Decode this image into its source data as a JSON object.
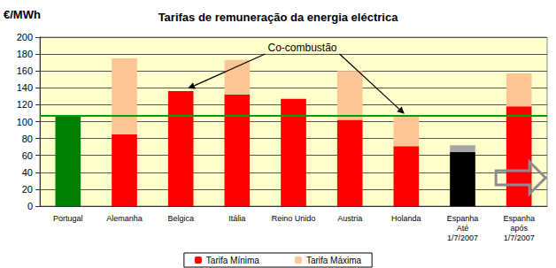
{
  "chart_data": {
    "type": "bar",
    "title": "Tarifas de remuneração da energia eléctrica",
    "y_label": "€/MWh",
    "categories": [
      "Portugal",
      "Alemanha",
      "Belgica",
      "Itália",
      "Reino Unido",
      "Austria",
      "Holanda",
      "Espanha\nAté\n1/7/2007",
      "Espanha\napós\n1/7/2007"
    ],
    "series": [
      {
        "name": "Tarifa Mínima",
        "color": "#ff0000",
        "colors": [
          "#008000",
          "#ff0000",
          "#ff0000",
          "#ff0000",
          "#ff0000",
          "#ff0000",
          "#ff0000",
          "#000000",
          "#ff0000"
        ],
        "values": [
          107,
          85,
          136,
          132,
          127,
          102,
          71,
          64,
          118
        ]
      },
      {
        "name": "Tarifa Máxima",
        "color": "#fcc596",
        "colors": [
          "#fcc596",
          "#fcc596",
          "#fcc596",
          "#fcc596",
          "#fcc596",
          "#fcc596",
          "#fcc596",
          "#a6a6a6",
          "#fcc596"
        ],
        "values": [
          null,
          90,
          null,
          41,
          null,
          58,
          35,
          8,
          39
        ]
      }
    ],
    "stacked": true,
    "ylim": [
      0,
      200
    ],
    "yticks": [
      0,
      20,
      40,
      60,
      80,
      100,
      120,
      140,
      160,
      180,
      200
    ],
    "grid": true,
    "legend": "bottom",
    "reference_line": {
      "value": 107,
      "color": "#00a000"
    },
    "annotations": [
      {
        "text": "Co-combustão",
        "targets": [
          "Belgica",
          "Holanda"
        ]
      }
    ]
  }
}
